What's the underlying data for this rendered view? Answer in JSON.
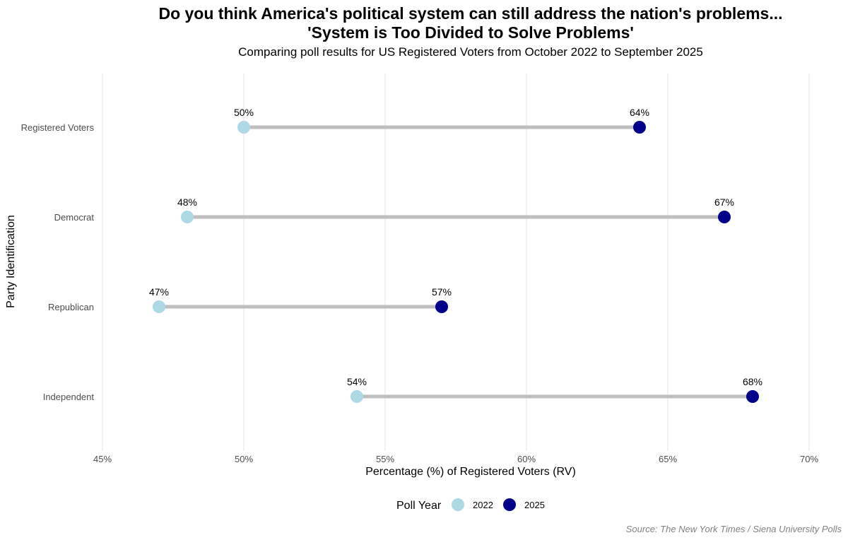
{
  "chart_data": {
    "type": "dumbbell",
    "title_line1": "Do you think America's political system can still address the nation's problems...",
    "title_line2": "'System is Too Divided to Solve Problems'",
    "subtitle": "Comparing poll results for US Registered Voters from October 2022 to September 2025",
    "xlabel": "Percentage (%) of Registered Voters (RV)",
    "ylabel": "Party Identification",
    "xlim": [
      45,
      70
    ],
    "x_ticks": [
      45,
      50,
      55,
      60,
      65,
      70
    ],
    "x_tick_labels": [
      "45%",
      "50%",
      "55%",
      "60%",
      "65%",
      "70%"
    ],
    "grid": true,
    "categories": [
      "Registered Voters",
      "Democrat",
      "Republican",
      "Independent"
    ],
    "series": [
      {
        "name": "2022",
        "color": "#add8e6",
        "values": [
          50,
          48,
          47,
          54
        ],
        "labels": [
          "50%",
          "48%",
          "47%",
          "54%"
        ]
      },
      {
        "name": "2025",
        "color": "#00008b",
        "values": [
          64,
          67,
          57,
          68
        ],
        "labels": [
          "64%",
          "67%",
          "57%",
          "68%"
        ]
      }
    ],
    "connector_color": "#bebebe",
    "legend": {
      "title": "Poll Year",
      "placement": "bottom"
    },
    "source": "Source: The New York Times / Siena University Polls"
  }
}
